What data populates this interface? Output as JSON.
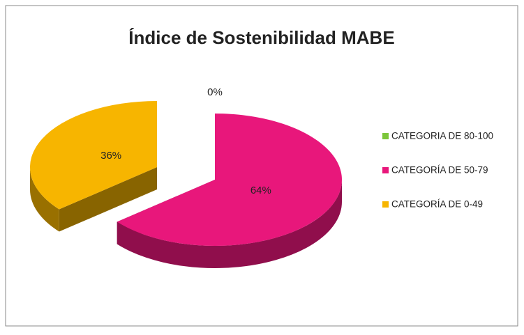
{
  "chart_data": {
    "type": "pie",
    "title": "Índice de Sostenibilidad MABE",
    "categories": [
      "CATEGORIA DE 80-100",
      "CATEGORÍA DE 50-79",
      "CATEGORÍA DE 0-49"
    ],
    "values": [
      0,
      64,
      36
    ],
    "value_labels": [
      "0%",
      "64%",
      "36%"
    ],
    "colors": [
      "#7cc63a",
      "#e8177b",
      "#f7b500"
    ],
    "legend": "right"
  }
}
